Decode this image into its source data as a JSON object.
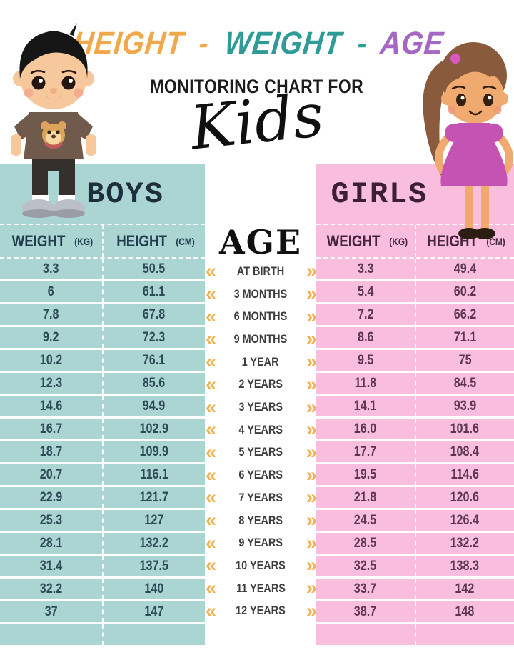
{
  "title": {
    "segments": [
      {
        "label": "HEIGHT",
        "color": "#f0a84b"
      },
      {
        "label": "-",
        "color": "#f0a84b"
      },
      {
        "label": "WEIGHT",
        "color": "#2f9b96"
      },
      {
        "label": "-",
        "color": "#2f9b96"
      },
      {
        "label": "AGE",
        "color": "#a566c4"
      }
    ],
    "subtitle": "MONITORING CHART FOR",
    "script_word": "Kids"
  },
  "boys": {
    "title": "BOYS",
    "weight_label": "WEIGHT",
    "weight_unit": "(KG)",
    "height_label": "HEIGHT",
    "height_unit": "(CM)",
    "rows": [
      [
        "3.3",
        "50.5"
      ],
      [
        "6",
        "61.1"
      ],
      [
        "7.8",
        "67.8"
      ],
      [
        "9.2",
        "72.3"
      ],
      [
        "10.2",
        "76.1"
      ],
      [
        "12.3",
        "85.6"
      ],
      [
        "14.6",
        "94.9"
      ],
      [
        "16.7",
        "102.9"
      ],
      [
        "18.7",
        "109.9"
      ],
      [
        "20.7",
        "116.1"
      ],
      [
        "22.9",
        "121.7"
      ],
      [
        "25.3",
        "127"
      ],
      [
        "28.1",
        "132.2"
      ],
      [
        "31.4",
        "137.5"
      ],
      [
        "32.2",
        "140"
      ],
      [
        "37",
        "147"
      ]
    ]
  },
  "girls": {
    "title": "GIRLS",
    "weight_label": "WEIGHT",
    "weight_unit": "(KG)",
    "height_label": "HEIGHT",
    "height_unit": "(CM)",
    "rows": [
      [
        "3.3",
        "49.4"
      ],
      [
        "5.4",
        "60.2"
      ],
      [
        "7.2",
        "66.2"
      ],
      [
        "8.6",
        "71.1"
      ],
      [
        "9.5",
        "75"
      ],
      [
        "11.8",
        "84.5"
      ],
      [
        "14.1",
        "93.9"
      ],
      [
        "16.0",
        "101.6"
      ],
      [
        "17.7",
        "108.4"
      ],
      [
        "19.5",
        "114.6"
      ],
      [
        "21.8",
        "120.6"
      ],
      [
        "24.5",
        "126.4"
      ],
      [
        "28.5",
        "132.2"
      ],
      [
        "32.5",
        "138.3"
      ],
      [
        "33.7",
        "142"
      ],
      [
        "38.7",
        "148"
      ]
    ]
  },
  "ages": {
    "title": "AGE",
    "left_chevron": "«",
    "right_chevron": "»",
    "items": [
      "AT BIRTH",
      "3 MONTHS",
      "6 MONTHS",
      "9 MONTHS",
      "1 YEAR",
      "2 YEARS",
      "3 YEARS",
      "4 YEARS",
      "5 YEARS",
      "6 YEARS",
      "7 YEARS",
      "8 YEARS",
      "9 YEARS",
      "10 YEARS",
      "11 YEARS",
      "12 YEARS"
    ]
  },
  "colors": {
    "boys_bg": "#abd5d3",
    "girls_bg": "#f9bede",
    "chevron": "#f2b254",
    "boys_text": "#2d4a57",
    "girls_text": "#5b3551",
    "title_orange": "#f0a84b",
    "title_teal": "#2f9b96",
    "title_purple": "#a566c4"
  },
  "chart_data": {
    "type": "table",
    "title": "HEIGHT - WEIGHT - AGE MONITORING CHART FOR Kids",
    "categories": [
      "AT BIRTH",
      "3 MONTHS",
      "6 MONTHS",
      "9 MONTHS",
      "1 YEAR",
      "2 YEARS",
      "3 YEARS",
      "4 YEARS",
      "5 YEARS",
      "6 YEARS",
      "7 YEARS",
      "8 YEARS",
      "9 YEARS",
      "10 YEARS",
      "11 YEARS",
      "12 YEARS"
    ],
    "series": [
      {
        "name": "Boys Weight (kg)",
        "values": [
          3.3,
          6,
          7.8,
          9.2,
          10.2,
          12.3,
          14.6,
          16.7,
          18.7,
          20.7,
          22.9,
          25.3,
          28.1,
          31.4,
          32.2,
          37
        ]
      },
      {
        "name": "Boys Height (cm)",
        "values": [
          50.5,
          61.1,
          67.8,
          72.3,
          76.1,
          85.6,
          94.9,
          102.9,
          109.9,
          116.1,
          121.7,
          127,
          132.2,
          137.5,
          140,
          147
        ]
      },
      {
        "name": "Girls Weight (kg)",
        "values": [
          3.3,
          5.4,
          7.2,
          8.6,
          9.5,
          11.8,
          14.1,
          16.0,
          17.7,
          19.5,
          21.8,
          24.5,
          28.5,
          32.5,
          33.7,
          38.7
        ]
      },
      {
        "name": "Girls Height (cm)",
        "values": [
          49.4,
          60.2,
          66.2,
          71.1,
          75,
          84.5,
          93.9,
          101.6,
          108.4,
          114.6,
          120.6,
          126.4,
          132.2,
          138.3,
          142,
          148
        ]
      }
    ]
  }
}
